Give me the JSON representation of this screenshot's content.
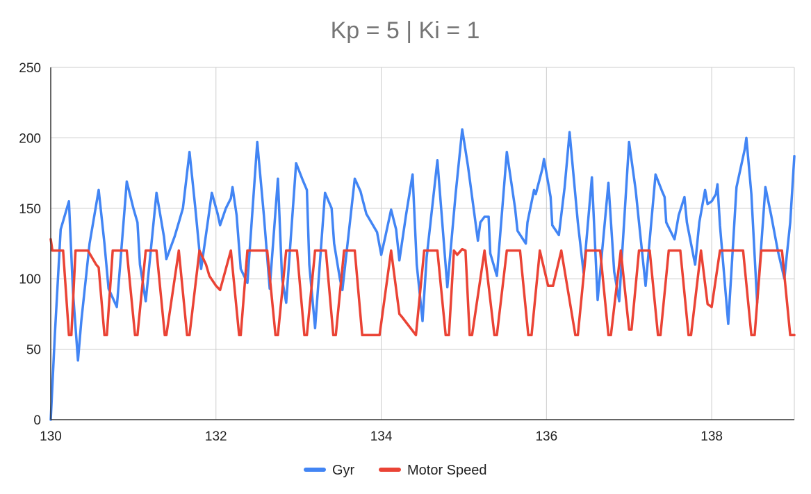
{
  "chart_data": {
    "type": "line",
    "title": "Kp = 5 |  Ki = 1",
    "xlabel": "",
    "ylabel": "",
    "xlim": [
      130,
      139
    ],
    "ylim": [
      0,
      250
    ],
    "xticks": [
      130,
      132,
      134,
      136,
      138
    ],
    "yticks": [
      0,
      50,
      100,
      150,
      200,
      250
    ],
    "grid": true,
    "legend_position": "bottom",
    "series": [
      {
        "name": "Gyr",
        "color": "#4285f4",
        "points": [
          [
            130.0,
            0
          ],
          [
            130.05,
            60
          ],
          [
            130.12,
            135
          ],
          [
            130.22,
            155
          ],
          [
            130.27,
            90
          ],
          [
            130.33,
            42
          ],
          [
            130.37,
            70
          ],
          [
            130.47,
            125
          ],
          [
            130.58,
            163
          ],
          [
            130.65,
            125
          ],
          [
            130.7,
            93
          ],
          [
            130.8,
            80
          ],
          [
            130.92,
            169
          ],
          [
            131.0,
            150
          ],
          [
            131.05,
            140
          ],
          [
            131.08,
            110
          ],
          [
            131.15,
            84
          ],
          [
            131.28,
            161
          ],
          [
            131.37,
            130
          ],
          [
            131.4,
            114
          ],
          [
            131.5,
            130
          ],
          [
            131.55,
            140
          ],
          [
            131.6,
            150
          ],
          [
            131.68,
            190
          ],
          [
            131.75,
            150
          ],
          [
            131.82,
            107
          ],
          [
            131.9,
            140
          ],
          [
            131.95,
            161
          ],
          [
            132.02,
            146
          ],
          [
            132.05,
            138
          ],
          [
            132.12,
            150
          ],
          [
            132.18,
            157
          ],
          [
            132.2,
            165
          ],
          [
            132.25,
            145
          ],
          [
            132.3,
            107
          ],
          [
            132.38,
            97
          ],
          [
            132.5,
            197
          ],
          [
            132.58,
            145
          ],
          [
            132.65,
            93
          ],
          [
            132.75,
            171
          ],
          [
            132.8,
            100
          ],
          [
            132.85,
            83
          ],
          [
            132.97,
            182
          ],
          [
            133.05,
            170
          ],
          [
            133.1,
            163
          ],
          [
            133.13,
            110
          ],
          [
            133.2,
            65
          ],
          [
            133.32,
            161
          ],
          [
            133.4,
            150
          ],
          [
            133.43,
            125
          ],
          [
            133.5,
            100
          ],
          [
            133.53,
            92
          ],
          [
            133.68,
            171
          ],
          [
            133.75,
            162
          ],
          [
            133.78,
            155
          ],
          [
            133.82,
            146
          ],
          [
            133.95,
            133
          ],
          [
            134.0,
            117
          ],
          [
            134.05,
            130
          ],
          [
            134.12,
            149
          ],
          [
            134.18,
            135
          ],
          [
            134.22,
            113
          ],
          [
            134.3,
            145
          ],
          [
            134.38,
            174
          ],
          [
            134.43,
            110
          ],
          [
            134.5,
            70
          ],
          [
            134.55,
            115
          ],
          [
            134.68,
            184
          ],
          [
            134.8,
            94
          ],
          [
            134.9,
            160
          ],
          [
            134.98,
            206
          ],
          [
            135.05,
            180
          ],
          [
            135.17,
            127
          ],
          [
            135.2,
            140
          ],
          [
            135.25,
            144
          ],
          [
            135.3,
            144
          ],
          [
            135.32,
            118
          ],
          [
            135.4,
            102
          ],
          [
            135.52,
            190
          ],
          [
            135.62,
            150
          ],
          [
            135.65,
            134
          ],
          [
            135.75,
            125
          ],
          [
            135.77,
            140
          ],
          [
            135.85,
            163
          ],
          [
            135.87,
            160
          ],
          [
            135.95,
            178
          ],
          [
            135.97,
            185
          ],
          [
            136.0,
            175
          ],
          [
            136.05,
            158
          ],
          [
            136.07,
            138
          ],
          [
            136.15,
            131
          ],
          [
            136.22,
            165
          ],
          [
            136.28,
            204
          ],
          [
            136.38,
            140
          ],
          [
            136.45,
            104
          ],
          [
            136.55,
            172
          ],
          [
            136.62,
            85
          ],
          [
            136.75,
            168
          ],
          [
            136.82,
            105
          ],
          [
            136.88,
            84
          ],
          [
            137.0,
            197
          ],
          [
            137.08,
            163
          ],
          [
            137.12,
            140
          ],
          [
            137.2,
            95
          ],
          [
            137.32,
            174
          ],
          [
            137.4,
            162
          ],
          [
            137.43,
            158
          ],
          [
            137.45,
            140
          ],
          [
            137.55,
            128
          ],
          [
            137.6,
            145
          ],
          [
            137.67,
            158
          ],
          [
            137.7,
            140
          ],
          [
            137.8,
            110
          ],
          [
            137.85,
            140
          ],
          [
            137.92,
            163
          ],
          [
            137.95,
            153
          ],
          [
            138.0,
            155
          ],
          [
            138.05,
            160
          ],
          [
            138.07,
            167
          ],
          [
            138.1,
            138
          ],
          [
            138.2,
            68
          ],
          [
            138.3,
            165
          ],
          [
            138.4,
            192
          ],
          [
            138.42,
            200
          ],
          [
            138.48,
            160
          ],
          [
            138.55,
            83
          ],
          [
            138.65,
            165
          ],
          [
            138.72,
            145
          ],
          [
            138.8,
            120
          ],
          [
            138.88,
            100
          ],
          [
            138.95,
            140
          ],
          [
            139.0,
            187
          ]
        ]
      },
      {
        "name": "Motor Speed",
        "color": "#ea4335",
        "points": [
          [
            130.0,
            128
          ],
          [
            130.02,
            120
          ],
          [
            130.15,
            120
          ],
          [
            130.22,
            60
          ],
          [
            130.25,
            60
          ],
          [
            130.3,
            120
          ],
          [
            130.45,
            120
          ],
          [
            130.55,
            110
          ],
          [
            130.58,
            108
          ],
          [
            130.65,
            60
          ],
          [
            130.68,
            60
          ],
          [
            130.75,
            120
          ],
          [
            130.92,
            120
          ],
          [
            131.02,
            60
          ],
          [
            131.05,
            60
          ],
          [
            131.15,
            120
          ],
          [
            131.28,
            120
          ],
          [
            131.38,
            60
          ],
          [
            131.4,
            60
          ],
          [
            131.55,
            120
          ],
          [
            131.65,
            60
          ],
          [
            131.68,
            60
          ],
          [
            131.8,
            120
          ],
          [
            131.88,
            110
          ],
          [
            131.92,
            102
          ],
          [
            132.0,
            95
          ],
          [
            132.05,
            92
          ],
          [
            132.18,
            120
          ],
          [
            132.28,
            60
          ],
          [
            132.3,
            60
          ],
          [
            132.38,
            120
          ],
          [
            132.62,
            120
          ],
          [
            132.72,
            60
          ],
          [
            132.75,
            60
          ],
          [
            132.85,
            120
          ],
          [
            132.98,
            120
          ],
          [
            133.07,
            60
          ],
          [
            133.1,
            60
          ],
          [
            133.2,
            120
          ],
          [
            133.33,
            120
          ],
          [
            133.42,
            60
          ],
          [
            133.45,
            60
          ],
          [
            133.55,
            120
          ],
          [
            133.68,
            120
          ],
          [
            133.77,
            60
          ],
          [
            133.98,
            60
          ],
          [
            134.12,
            120
          ],
          [
            134.22,
            75
          ],
          [
            134.25,
            73
          ],
          [
            134.42,
            60
          ],
          [
            134.52,
            120
          ],
          [
            134.68,
            120
          ],
          [
            134.78,
            60
          ],
          [
            134.82,
            60
          ],
          [
            134.88,
            120
          ],
          [
            134.92,
            117
          ],
          [
            134.98,
            121
          ],
          [
            135.02,
            120
          ],
          [
            135.07,
            60
          ],
          [
            135.1,
            60
          ],
          [
            135.25,
            120
          ],
          [
            135.37,
            60
          ],
          [
            135.4,
            60
          ],
          [
            135.52,
            120
          ],
          [
            135.68,
            120
          ],
          [
            135.78,
            60
          ],
          [
            135.82,
            60
          ],
          [
            135.92,
            120
          ],
          [
            136.02,
            95
          ],
          [
            136.08,
            95
          ],
          [
            136.18,
            120
          ],
          [
            136.35,
            60
          ],
          [
            136.38,
            60
          ],
          [
            136.48,
            120
          ],
          [
            136.65,
            120
          ],
          [
            136.75,
            60
          ],
          [
            136.78,
            60
          ],
          [
            136.9,
            120
          ],
          [
            137.0,
            64
          ],
          [
            137.03,
            64
          ],
          [
            137.12,
            120
          ],
          [
            137.25,
            120
          ],
          [
            137.35,
            60
          ],
          [
            137.38,
            60
          ],
          [
            137.48,
            120
          ],
          [
            137.62,
            120
          ],
          [
            137.72,
            60
          ],
          [
            137.75,
            60
          ],
          [
            137.87,
            120
          ],
          [
            137.95,
            82
          ],
          [
            138.0,
            80
          ],
          [
            138.1,
            120
          ],
          [
            138.38,
            120
          ],
          [
            138.48,
            60
          ],
          [
            138.52,
            60
          ],
          [
            138.6,
            120
          ],
          [
            138.85,
            120
          ],
          [
            138.95,
            60
          ],
          [
            139.0,
            60
          ]
        ]
      }
    ]
  }
}
